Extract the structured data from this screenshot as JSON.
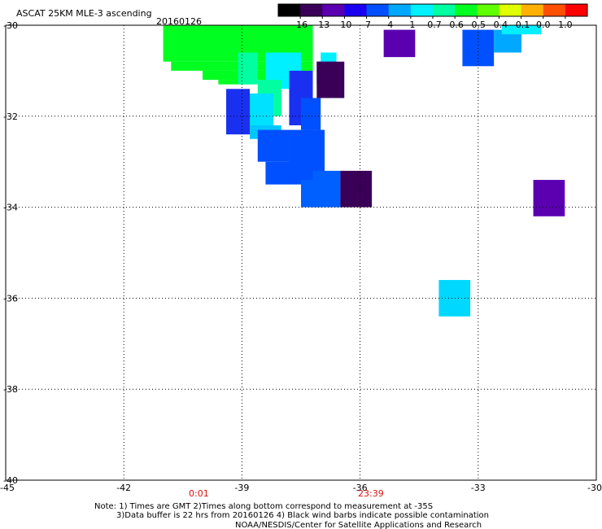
{
  "header": {
    "title": "ASCAT 25KM MLE-3 ascending",
    "date": "20160126"
  },
  "colorbar": {
    "labels": [
      "-16",
      "-13",
      "-10",
      "-7",
      "-4",
      "-1",
      "-0.7",
      "-0.6",
      "-0.5",
      "-0.4",
      "-0.1",
      "0.0",
      "1.0"
    ],
    "colors": [
      "#000000",
      "#3a0058",
      "#5a00b0",
      "#1a00f0",
      "#0050ff",
      "#00a8ff",
      "#00f0ff",
      "#00ffa0",
      "#00ff20",
      "#60ff00",
      "#e0ff00",
      "#ffb000",
      "#ff5000",
      "#ff0000"
    ]
  },
  "chart_data": {
    "type": "heatmap",
    "title": "ASCAT 25KM MLE-3 ascending",
    "subtitle": "20160126",
    "xlim": [
      -45,
      -30
    ],
    "ylim": [
      -40,
      -30
    ],
    "xticks": [
      -45,
      -42,
      -39,
      -36,
      -33,
      -30
    ],
    "yticks": [
      -30,
      -32,
      -34,
      -36,
      -38,
      -40
    ],
    "xtick_labels": [
      "-45",
      "-42",
      "-39",
      "-36",
      "-33",
      "-30"
    ],
    "ytick_labels": [
      "-30",
      "-32",
      "-34",
      "-36",
      "-38",
      "-40"
    ],
    "grid": true,
    "colorbar_labels": [
      "-16",
      "-13",
      "-10",
      "-7",
      "-4",
      "-1",
      "-0.7",
      "-0.6",
      "-0.5",
      "-0.4",
      "-0.1",
      "0.0",
      "1.0"
    ],
    "cells": [
      {
        "lon": [
          -41.0,
          -37.2
        ],
        "lat": [
          -30.0,
          -30.8
        ],
        "color": "#00ff20"
      },
      {
        "lon": [
          -40.8,
          -37.2
        ],
        "lat": [
          -30.8,
          -31.0
        ],
        "color": "#00ff20"
      },
      {
        "lon": [
          -40.0,
          -38.2
        ],
        "lat": [
          -31.0,
          -31.2
        ],
        "color": "#00ff20"
      },
      {
        "lon": [
          -39.6,
          -38.8
        ],
        "lat": [
          -31.2,
          -31.3
        ],
        "color": "#00ff20"
      },
      {
        "lon": [
          -39.1,
          -38.6
        ],
        "lat": [
          -30.6,
          -31.3
        ],
        "color": "#00ffa0"
      },
      {
        "lon": [
          -38.4,
          -37.5
        ],
        "lat": [
          -30.6,
          -31.4
        ],
        "color": "#00f0ff"
      },
      {
        "lon": [
          -38.6,
          -38.0
        ],
        "lat": [
          -31.2,
          -32.0
        ],
        "color": "#00ffa0"
      },
      {
        "lon": [
          -38.9,
          -38.2
        ],
        "lat": [
          -31.5,
          -32.2
        ],
        "color": "#00e0ff"
      },
      {
        "lon": [
          -38.8,
          -38.0
        ],
        "lat": [
          -32.2,
          -32.5
        ],
        "color": "#00c8ff"
      },
      {
        "lon": [
          -37.0,
          -36.6
        ],
        "lat": [
          -30.6,
          -30.8
        ],
        "color": "#00f0ff"
      },
      {
        "lon": [
          -37.1,
          -36.6
        ],
        "lat": [
          -30.8,
          -31.3
        ],
        "color": "#1a00f0"
      },
      {
        "lon": [
          -37.1,
          -36.4
        ],
        "lat": [
          -30.8,
          -31.6
        ],
        "color": "#3a0058"
      },
      {
        "lon": [
          -39.4,
          -38.8
        ],
        "lat": [
          -31.4,
          -32.4
        ],
        "color": "#1a30f0"
      },
      {
        "lon": [
          -37.8,
          -37.2
        ],
        "lat": [
          -31.0,
          -32.2
        ],
        "color": "#1a30f0"
      },
      {
        "lon": [
          -37.5,
          -37.0
        ],
        "lat": [
          -31.6,
          -32.3
        ],
        "color": "#0050ff"
      },
      {
        "lon": [
          -38.6,
          -37.8
        ],
        "lat": [
          -32.3,
          -33.0
        ],
        "color": "#0050ff"
      },
      {
        "lon": [
          -37.8,
          -36.9
        ],
        "lat": [
          -32.3,
          -33.4
        ],
        "color": "#0050ff"
      },
      {
        "lon": [
          -38.4,
          -37.2
        ],
        "lat": [
          -33.0,
          -33.5
        ],
        "color": "#0050ff"
      },
      {
        "lon": [
          -37.2,
          -36.5
        ],
        "lat": [
          -33.2,
          -34.0
        ],
        "color": "#0060ff"
      },
      {
        "lon": [
          -37.5,
          -37.0
        ],
        "lat": [
          -33.4,
          -34.0
        ],
        "color": "#0060ff"
      },
      {
        "lon": [
          -36.5,
          -35.7
        ],
        "lat": [
          -33.2,
          -34.0
        ],
        "color": "#3a0058"
      },
      {
        "lon": [
          -35.4,
          -34.6
        ],
        "lat": [
          -30.1,
          -30.7
        ],
        "color": "#5a00b0"
      },
      {
        "lon": [
          -33.4,
          -32.6
        ],
        "lat": [
          -30.1,
          -30.9
        ],
        "color": "#0050ff"
      },
      {
        "lon": [
          -32.6,
          -31.9
        ],
        "lat": [
          -30.1,
          -30.6
        ],
        "color": "#00a8ff"
      },
      {
        "lon": [
          -32.4,
          -31.4
        ],
        "lat": [
          -30.0,
          -30.2
        ],
        "color": "#00f0ff"
      },
      {
        "lon": [
          -31.6,
          -30.8
        ],
        "lat": [
          -33.4,
          -34.2
        ],
        "color": "#5a00b0"
      },
      {
        "lon": [
          -34.0,
          -33.2
        ],
        "lat": [
          -35.6,
          -36.4
        ],
        "color": "#00d8ff"
      }
    ]
  },
  "time_labels": [
    "0:01",
    "23:39"
  ],
  "notes": {
    "line1": "Note: 1) Times are GMT 2)Times along bottom correspond to measurement at -35S",
    "line2": "3)Data buffer is 22 hrs from 20160126 4) Black wind barbs indicate possible contamination",
    "line3": "NOAA/NESDIS/Center for Satellite Applications and Research"
  }
}
